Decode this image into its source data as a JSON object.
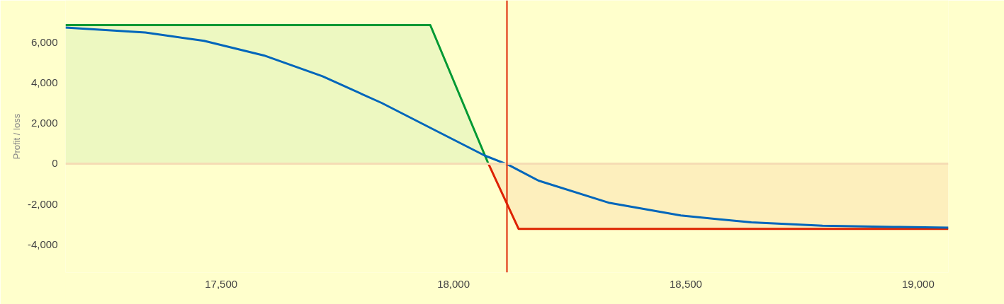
{
  "chart_data": {
    "type": "area",
    "ylabel": "Profit / loss",
    "xlim": [
      17165,
      19065
    ],
    "ylim": [
      -5375,
      8060
    ],
    "xticks": [
      {
        "value": 17500,
        "label": "17,500"
      },
      {
        "value": 18000,
        "label": "18,000"
      },
      {
        "value": 18500,
        "label": "18,500"
      },
      {
        "value": 19000,
        "label": "19,000"
      }
    ],
    "yticks": [
      {
        "value": -4000,
        "label": "-4,000"
      },
      {
        "value": -2000,
        "label": "-2,000"
      },
      0,
      {
        "value": 2000,
        "label": "2,000"
      },
      {
        "value": 4000,
        "label": "4,000"
      },
      {
        "value": 6000,
        "label": "6,000"
      }
    ],
    "series": [
      {
        "color": "#009933",
        "x": [
          17165,
          17950,
          18075
        ],
        "values": [
          6840,
          6840,
          0
        ]
      },
      {
        "color": "#dd2200",
        "x": [
          18075,
          18140,
          19065
        ],
        "values": [
          0,
          -3220,
          -3220
        ]
      },
      {
        "type": "line",
        "color": "#0066bb",
        "x": [
          17165,
          17337,
          17463,
          17592,
          17718,
          17845,
          17973,
          18067,
          18118,
          18183,
          18336,
          18489,
          18641,
          18794,
          18946,
          19065
        ],
        "values": [
          6720,
          6470,
          6060,
          5340,
          4310,
          3000,
          1500,
          400,
          -60,
          -840,
          -1940,
          -2560,
          -2900,
          -3060,
          -3120,
          -3160
        ]
      }
    ],
    "ref_lines": [
      {
        "axis": "y",
        "value": 0,
        "color": "#f5dcb4"
      },
      {
        "axis": "x",
        "value": 18115,
        "color": "#dd2200"
      }
    ],
    "grid": false
  }
}
